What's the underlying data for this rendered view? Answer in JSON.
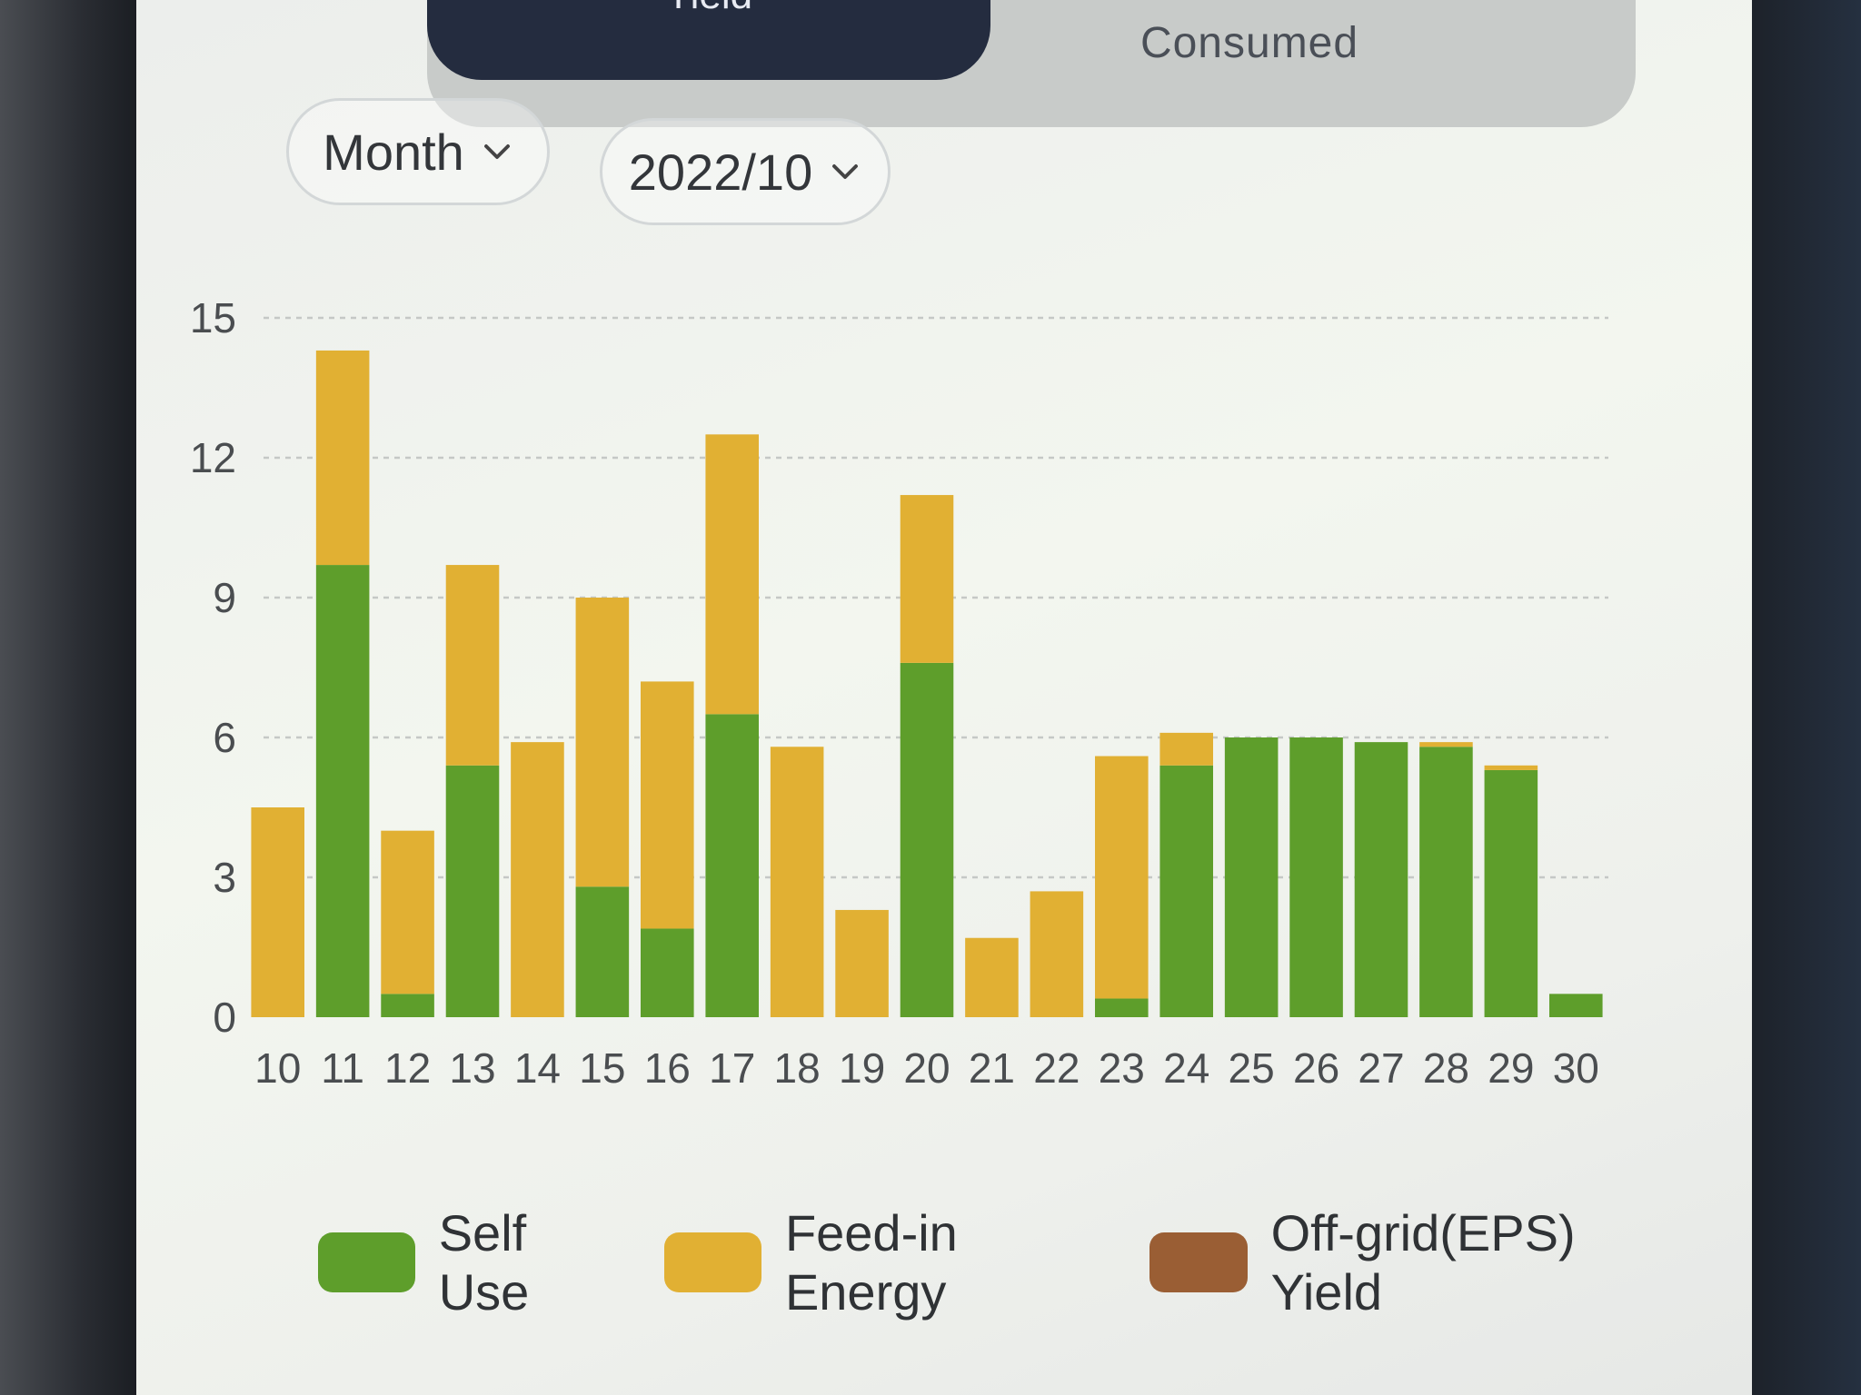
{
  "tabs": [
    {
      "label": "Yield",
      "active": true
    },
    {
      "label": "Consumed",
      "active": false
    }
  ],
  "filters": {
    "period": "Month",
    "date": "2022/10"
  },
  "colors": {
    "self_use": "#5e9e2b",
    "feed_in": "#e1b033",
    "off_grid": "#9a5e34",
    "gridline": "#c5c8c6",
    "axis_text": "#4a4d50"
  },
  "chart_data": {
    "type": "bar",
    "stacked": true,
    "categories": [
      "10",
      "11",
      "12",
      "13",
      "14",
      "15",
      "16",
      "17",
      "18",
      "19",
      "20",
      "21",
      "22",
      "23",
      "24",
      "25",
      "26",
      "27",
      "28",
      "29",
      "30"
    ],
    "series": [
      {
        "name": "Self Use",
        "values": [
          0,
          9.7,
          0.5,
          5.4,
          0,
          2.8,
          1.9,
          6.5,
          0,
          0,
          7.6,
          0,
          0,
          0.4,
          5.4,
          6.0,
          6.0,
          5.9,
          5.8,
          5.3,
          0.5
        ]
      },
      {
        "name": "Feed-in Energy",
        "values": [
          4.5,
          4.6,
          3.5,
          4.3,
          5.9,
          6.2,
          5.3,
          6.0,
          5.8,
          2.3,
          3.6,
          1.7,
          2.7,
          5.2,
          0.7,
          0,
          0,
          0,
          0.1,
          0.1,
          0
        ]
      },
      {
        "name": "Off-grid(EPS) Yield",
        "values": [
          0,
          0,
          0,
          0,
          0,
          0,
          0,
          0,
          0,
          0,
          0,
          0,
          0,
          0,
          0,
          0,
          0,
          0,
          0,
          0,
          0
        ]
      }
    ],
    "y_ticks": [
      0,
      3,
      6,
      9,
      12,
      15
    ],
    "ylim": [
      0,
      15
    ],
    "grid": true,
    "legend_position": "bottom"
  }
}
